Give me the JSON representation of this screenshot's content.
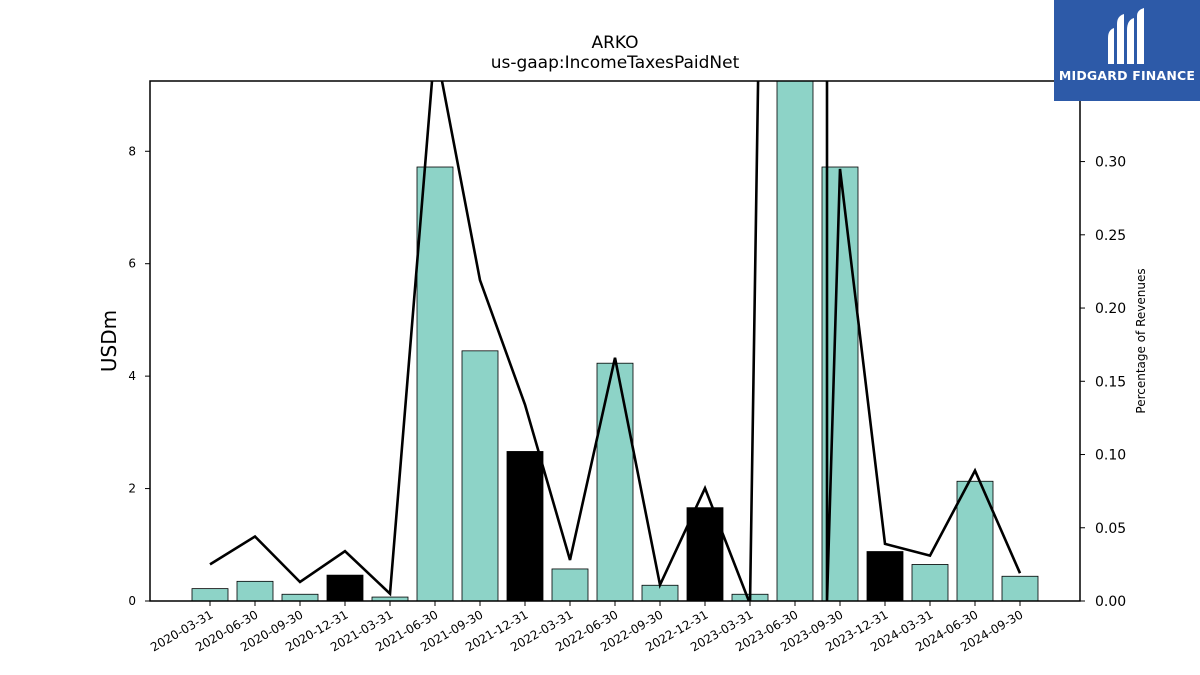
{
  "chart_data": {
    "type": "bar",
    "title": "ARKO",
    "subtitle": "us-gaap:IncomeTaxesPaidNet",
    "ylabel": "USDm",
    "y2label": "Percentage of Revenues",
    "ylim": [
      0,
      9.25
    ],
    "y2lim": [
      0,
      0.355
    ],
    "yticks": [
      "0",
      "2",
      "4",
      "6",
      "8"
    ],
    "y2ticks": [
      "0.00",
      "0.05",
      "0.10",
      "0.15",
      "0.20",
      "0.25",
      "0.30"
    ],
    "categories": [
      "2020-03-31",
      "2020-06-30",
      "2020-09-30",
      "2020-12-31",
      "2021-03-31",
      "2021-06-30",
      "2021-09-30",
      "2021-12-31",
      "2022-03-31",
      "2022-06-30",
      "2022-09-30",
      "2022-12-31",
      "2023-03-31",
      "2023-06-30",
      "2023-09-30",
      "2023-12-31",
      "2024-03-31",
      "2024-06-30",
      "2024-09-30"
    ],
    "values": [
      0.22,
      0.35,
      0.12,
      0.46,
      0.07,
      7.72,
      4.45,
      2.66,
      0.57,
      4.23,
      0.28,
      1.66,
      0.12,
      9.3,
      7.72,
      0.88,
      0.65,
      2.13,
      0.44
    ],
    "bar_highlight": [
      false,
      false,
      false,
      true,
      false,
      false,
      false,
      true,
      false,
      false,
      false,
      true,
      false,
      false,
      false,
      true,
      false,
      false,
      false
    ],
    "series": [
      {
        "axis": "right",
        "values": [
          0.025,
          0.044,
          0.013,
          0.034,
          0.005,
          0.38,
          0.219,
          0.134,
          0.028,
          0.166,
          0.011,
          0.077,
          -0.002,
          null,
          0.295,
          0.039,
          0.031,
          0.089,
          0.019
        ]
      }
    ],
    "colors": {
      "bar": "#8dd3c7",
      "bar_highlight": "#000000",
      "line": "#000000"
    }
  },
  "logo": {
    "text": "MIDGARD FINANCE",
    "bg": "#2d5aa8"
  }
}
